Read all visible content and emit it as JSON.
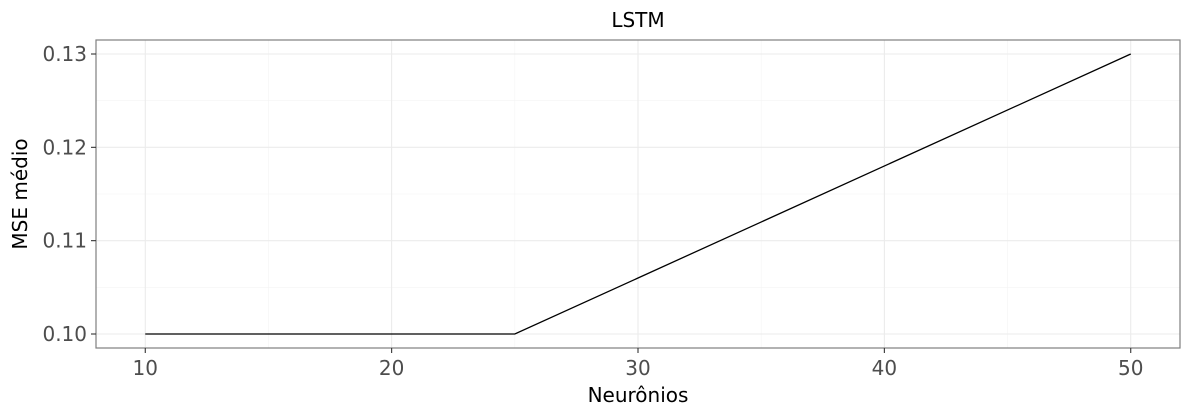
{
  "chart_data": {
    "type": "line",
    "title": "LSTM",
    "xlabel": "Neurônios",
    "ylabel": "MSE médio",
    "x": [
      10,
      25,
      50
    ],
    "series": [
      {
        "values": [
          0.1,
          0.1,
          0.13
        ]
      }
    ],
    "xlim": [
      8,
      52
    ],
    "ylim": [
      0.0985,
      0.1315
    ],
    "xticks": [
      10,
      20,
      30,
      40,
      50
    ],
    "xtick_labels": [
      "10",
      "20",
      "30",
      "40",
      "50"
    ],
    "yticks": [
      0.1,
      0.11,
      0.12,
      0.13
    ],
    "ytick_labels": [
      "0.10",
      "0.11",
      "0.12",
      "0.13"
    ],
    "grid": true,
    "line_color": "#000000"
  }
}
